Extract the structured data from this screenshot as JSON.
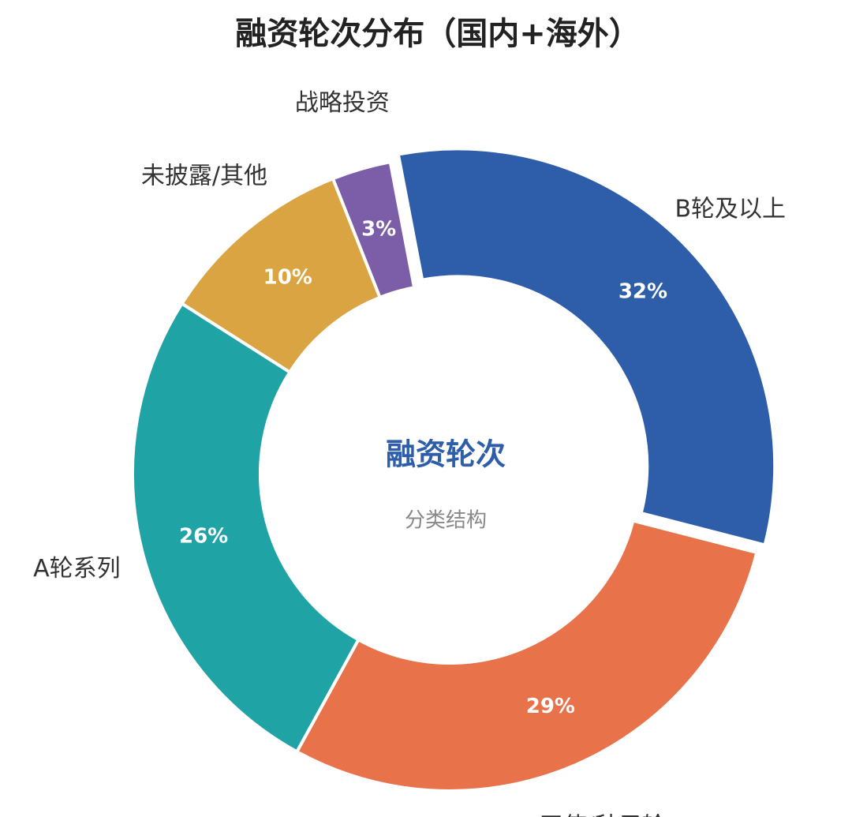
{
  "chart_data": {
    "type": "donut",
    "title": "融资轮次分布（国内+海外）",
    "center_title": "融资轮次",
    "center_subtitle": "分类结构",
    "categories": [
      "B轮及以上",
      "天使/种子轮",
      "A轮系列",
      "未披露/其他",
      "战略投资"
    ],
    "values": [
      32,
      29,
      26,
      10,
      3
    ],
    "value_labels": [
      "32%",
      "29%",
      "26%",
      "10%",
      "3%"
    ],
    "colors": [
      "#2e5eaa",
      "#e8734a",
      "#20a3a5",
      "#d9a441",
      "#7b5ea7"
    ]
  }
}
